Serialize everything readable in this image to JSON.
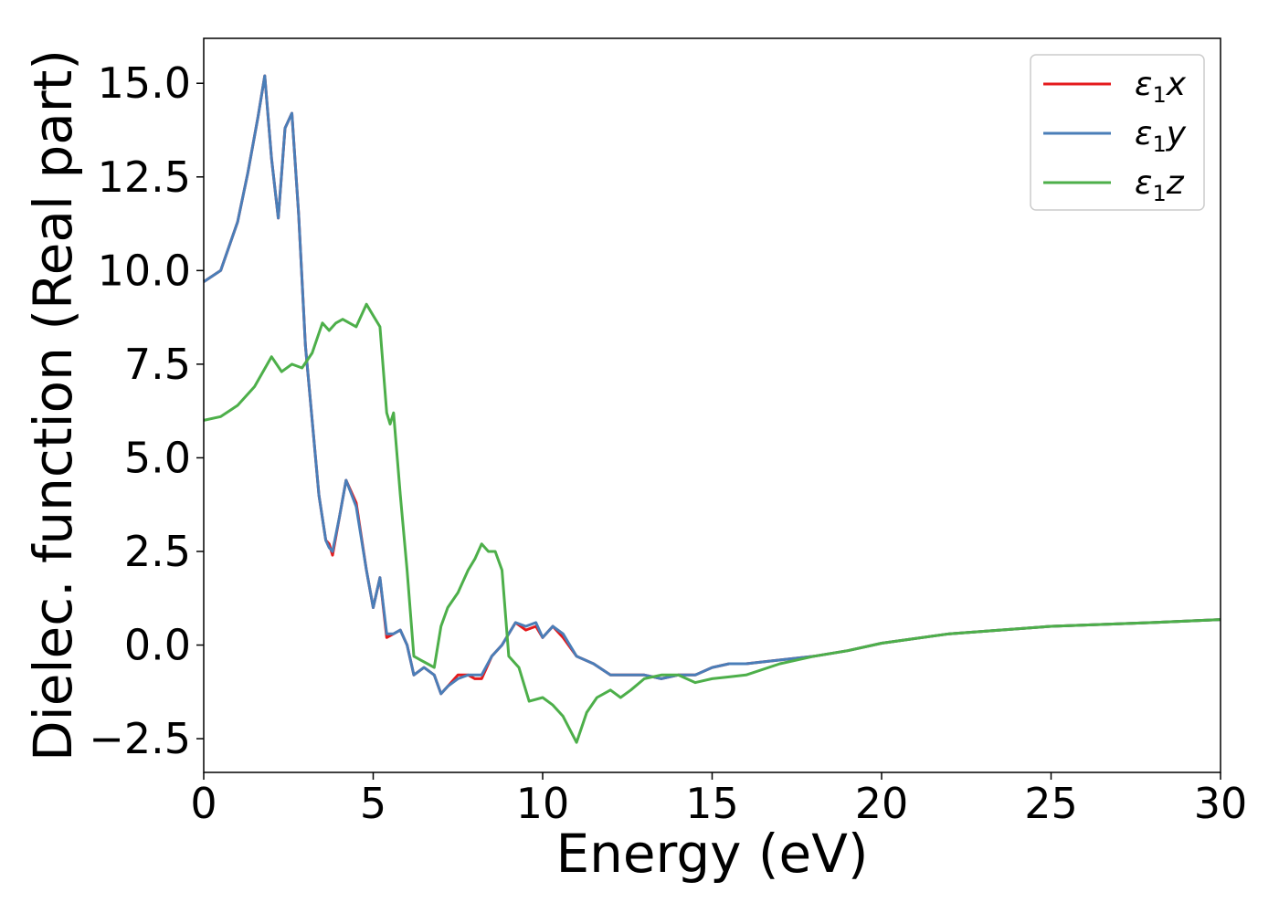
{
  "chart_data": {
    "type": "line",
    "xlabel": "Energy (eV)",
    "ylabel": "Dielec. function (Real part)",
    "xlim": [
      0,
      30
    ],
    "ylim": [
      -3.4,
      16.2
    ],
    "xticks": [
      0,
      5,
      10,
      15,
      20,
      25,
      30
    ],
    "xtick_labels": [
      "0",
      "5",
      "10",
      "15",
      "20",
      "25",
      "30"
    ],
    "yticks": [
      -2.5,
      0,
      2.5,
      5,
      7.5,
      10,
      12.5,
      15
    ],
    "ytick_labels": [
      "−2.5",
      "0.0",
      "2.5",
      "5.0",
      "7.5",
      "10.0",
      "12.5",
      "15.0"
    ],
    "grid": false,
    "legend_position": "top-right",
    "series": [
      {
        "name": "ε₁x",
        "legend_main": "ε",
        "legend_sub": "1",
        "legend_var": "x",
        "color": "#e41a1c",
        "x": [
          0,
          0.5,
          1.0,
          1.3,
          1.6,
          1.8,
          2.0,
          2.2,
          2.4,
          2.6,
          2.8,
          3.0,
          3.2,
          3.4,
          3.6,
          3.7,
          3.8,
          4.0,
          4.2,
          4.5,
          4.8,
          5.0,
          5.2,
          5.4,
          5.6,
          5.8,
          6.0,
          6.2,
          6.5,
          6.8,
          7.0,
          7.2,
          7.5,
          7.8,
          8.0,
          8.2,
          8.5,
          8.8,
          9.2,
          9.5,
          9.8,
          10.0,
          10.3,
          10.6,
          11.0,
          11.5,
          12.0,
          12.5,
          13.0,
          13.5,
          14.0,
          14.5,
          15.0,
          15.5,
          16.0,
          17.0,
          18.0,
          19.0,
          20.0,
          22.0,
          25.0,
          28.0,
          30.0
        ],
        "y": [
          9.7,
          10.0,
          11.3,
          12.6,
          14.1,
          15.2,
          13.0,
          11.4,
          13.8,
          14.2,
          11.5,
          8.0,
          6.0,
          4.0,
          2.8,
          2.7,
          2.4,
          3.4,
          4.4,
          3.8,
          2.0,
          1.0,
          1.8,
          0.2,
          0.3,
          0.4,
          0.0,
          -0.8,
          -0.6,
          -0.8,
          -1.3,
          -1.1,
          -0.8,
          -0.8,
          -0.9,
          -0.9,
          -0.3,
          0.0,
          0.6,
          0.4,
          0.5,
          0.2,
          0.5,
          0.2,
          -0.3,
          -0.5,
          -0.8,
          -0.8,
          -0.8,
          -0.9,
          -0.8,
          -0.8,
          -0.6,
          -0.5,
          -0.5,
          -0.4,
          -0.3,
          -0.15,
          0.05,
          0.3,
          0.5,
          0.6,
          0.68
        ]
      },
      {
        "name": "ε₁y",
        "legend_main": "ε",
        "legend_sub": "1",
        "legend_var": "y",
        "color": "#4a7eb8",
        "x": [
          0,
          0.5,
          1.0,
          1.3,
          1.6,
          1.8,
          2.0,
          2.2,
          2.4,
          2.6,
          2.8,
          3.0,
          3.2,
          3.4,
          3.6,
          3.7,
          3.8,
          4.0,
          4.2,
          4.5,
          4.8,
          5.0,
          5.2,
          5.4,
          5.6,
          5.8,
          6.0,
          6.2,
          6.5,
          6.8,
          7.0,
          7.2,
          7.5,
          7.8,
          8.0,
          8.2,
          8.5,
          8.8,
          9.2,
          9.5,
          9.8,
          10.0,
          10.3,
          10.6,
          11.0,
          11.5,
          12.0,
          12.5,
          13.0,
          13.5,
          14.0,
          14.5,
          15.0,
          15.5,
          16.0,
          17.0,
          18.0,
          19.0,
          20.0,
          22.0,
          25.0,
          28.0,
          30.0
        ],
        "y": [
          9.7,
          10.0,
          11.3,
          12.6,
          14.1,
          15.2,
          13.0,
          11.4,
          13.8,
          14.2,
          11.5,
          8.0,
          6.0,
          4.0,
          2.8,
          2.6,
          2.5,
          3.4,
          4.4,
          3.7,
          2.0,
          1.0,
          1.8,
          0.3,
          0.3,
          0.4,
          0.0,
          -0.8,
          -0.6,
          -0.8,
          -1.3,
          -1.1,
          -0.9,
          -0.8,
          -0.8,
          -0.8,
          -0.3,
          0.0,
          0.6,
          0.5,
          0.6,
          0.2,
          0.5,
          0.3,
          -0.3,
          -0.5,
          -0.8,
          -0.8,
          -0.8,
          -0.9,
          -0.8,
          -0.8,
          -0.6,
          -0.5,
          -0.5,
          -0.4,
          -0.3,
          -0.15,
          0.05,
          0.3,
          0.5,
          0.6,
          0.68
        ]
      },
      {
        "name": "ε₁z",
        "legend_main": "ε",
        "legend_sub": "1",
        "legend_var": "z",
        "color": "#4daf4a",
        "x": [
          0,
          0.5,
          1.0,
          1.5,
          2.0,
          2.3,
          2.6,
          2.9,
          3.2,
          3.5,
          3.7,
          3.9,
          4.1,
          4.3,
          4.5,
          4.8,
          5.0,
          5.2,
          5.4,
          5.5,
          5.6,
          5.8,
          6.0,
          6.2,
          6.4,
          6.6,
          6.8,
          7.0,
          7.2,
          7.5,
          7.8,
          8.0,
          8.2,
          8.4,
          8.6,
          8.8,
          9.0,
          9.3,
          9.6,
          10.0,
          10.3,
          10.6,
          11.0,
          11.3,
          11.6,
          12.0,
          12.3,
          12.6,
          13.0,
          13.5,
          14.0,
          14.5,
          15.0,
          15.5,
          16.0,
          17.0,
          18.0,
          19.0,
          20.0,
          22.0,
          25.0,
          28.0,
          30.0
        ],
        "y": [
          6.0,
          6.1,
          6.4,
          6.9,
          7.7,
          7.3,
          7.5,
          7.4,
          7.8,
          8.6,
          8.4,
          8.6,
          8.7,
          8.6,
          8.5,
          9.1,
          8.8,
          8.5,
          6.2,
          5.9,
          6.2,
          4.0,
          2.0,
          -0.3,
          -0.4,
          -0.5,
          -0.6,
          0.5,
          1.0,
          1.4,
          2.0,
          2.3,
          2.7,
          2.5,
          2.5,
          2.0,
          -0.3,
          -0.6,
          -1.5,
          -1.4,
          -1.6,
          -1.9,
          -2.6,
          -1.8,
          -1.4,
          -1.2,
          -1.4,
          -1.2,
          -0.9,
          -0.8,
          -0.8,
          -1.0,
          -0.9,
          -0.85,
          -0.8,
          -0.5,
          -0.3,
          -0.15,
          0.05,
          0.3,
          0.5,
          0.6,
          0.68
        ]
      }
    ]
  }
}
